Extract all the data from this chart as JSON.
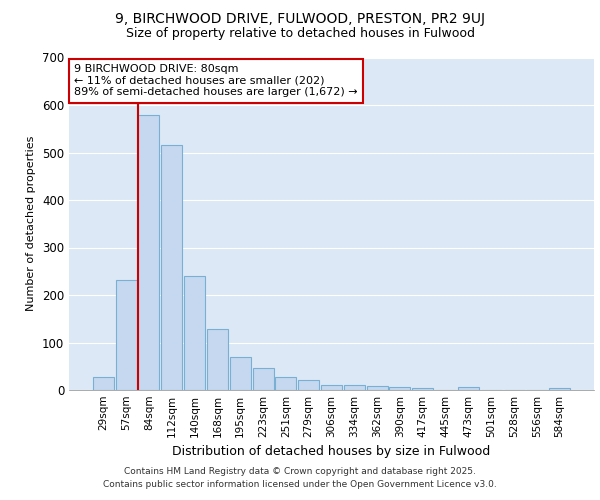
{
  "title_line1": "9, BIRCHWOOD DRIVE, FULWOOD, PRESTON, PR2 9UJ",
  "title_line2": "Size of property relative to detached houses in Fulwood",
  "xlabel": "Distribution of detached houses by size in Fulwood",
  "ylabel": "Number of detached properties",
  "categories": [
    "29sqm",
    "57sqm",
    "84sqm",
    "112sqm",
    "140sqm",
    "168sqm",
    "195sqm",
    "223sqm",
    "251sqm",
    "279sqm",
    "306sqm",
    "334sqm",
    "362sqm",
    "390sqm",
    "417sqm",
    "445sqm",
    "473sqm",
    "501sqm",
    "528sqm",
    "556sqm",
    "584sqm"
  ],
  "values": [
    27,
    232,
    580,
    515,
    240,
    128,
    70,
    47,
    28,
    22,
    11,
    11,
    9,
    7,
    5,
    0,
    7,
    0,
    0,
    0,
    5
  ],
  "bar_color": "#c5d8f0",
  "bar_edge_color": "#7aafd4",
  "vline_index": 2,
  "vline_color": "#cc0000",
  "annotation_text": "9 BIRCHWOOD DRIVE: 80sqm\n← 11% of detached houses are smaller (202)\n89% of semi-detached houses are larger (1,672) →",
  "annotation_box_facecolor": "#ffffff",
  "annotation_box_edgecolor": "#cc0000",
  "figure_bg_color": "#ffffff",
  "plot_bg_color": "#dce8f5",
  "grid_color": "#ffffff",
  "ylim": [
    0,
    700
  ],
  "yticks": [
    0,
    100,
    200,
    300,
    400,
    500,
    600,
    700
  ],
  "footer_line1": "Contains HM Land Registry data © Crown copyright and database right 2025.",
  "footer_line2": "Contains public sector information licensed under the Open Government Licence v3.0."
}
